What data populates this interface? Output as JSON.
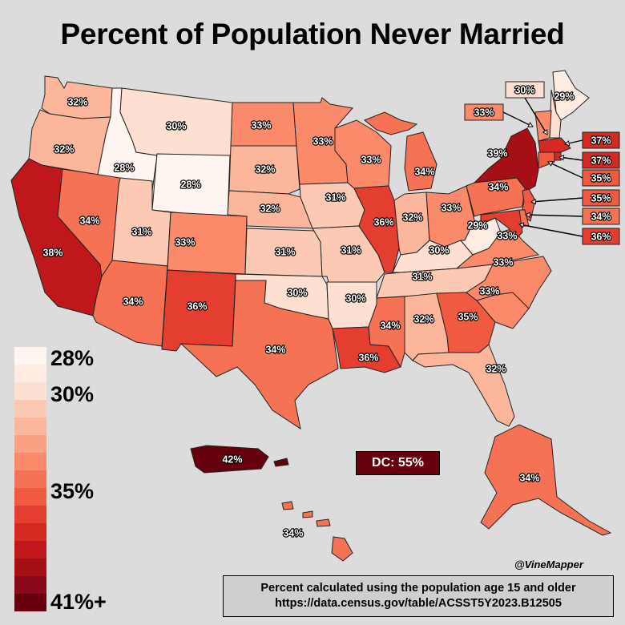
{
  "title": "Percent of Population Never Married",
  "colors": {
    "background": "#dcdcdc",
    "scale": [
      "#fff5f0",
      "#feebe2",
      "#fde0d2",
      "#fcc9b4",
      "#fcb69b",
      "#fca082",
      "#fb8a6a",
      "#f67255",
      "#ef5a40",
      "#e33e2f",
      "#d42a22",
      "#c0171c",
      "#a50f15",
      "#87091a",
      "#67000d"
    ]
  },
  "legend": {
    "labels": [
      {
        "text": "28%",
        "level": 0
      },
      {
        "text": "30%",
        "level": 2
      },
      {
        "text": "35%",
        "level": 7
      },
      {
        "text": "41%+",
        "level": 14
      }
    ]
  },
  "states": {
    "WA": {
      "label": "32%",
      "value": 32
    },
    "OR": {
      "label": "32%",
      "value": 32
    },
    "CA": {
      "label": "38%",
      "value": 38
    },
    "ID": {
      "label": "28%",
      "value": 28
    },
    "NV": {
      "label": "34%",
      "value": 34
    },
    "MT": {
      "label": "30%",
      "value": 30
    },
    "WY": {
      "label": "28%",
      "value": 28
    },
    "UT": {
      "label": "31%",
      "value": 31
    },
    "AZ": {
      "label": "34%",
      "value": 34
    },
    "CO": {
      "label": "33%",
      "value": 33
    },
    "NM": {
      "label": "36%",
      "value": 36
    },
    "ND": {
      "label": "33%",
      "value": 33
    },
    "SD": {
      "label": "32%",
      "value": 32
    },
    "NE": {
      "label": "32%",
      "value": 32
    },
    "KS": {
      "label": "31%",
      "value": 31
    },
    "OK": {
      "label": "30%",
      "value": 30
    },
    "TX": {
      "label": "34%",
      "value": 34
    },
    "MN": {
      "label": "33%",
      "value": 33
    },
    "IA": {
      "label": "31%",
      "value": 31
    },
    "MO": {
      "label": "31%",
      "value": 31
    },
    "AR": {
      "label": "30%",
      "value": 30
    },
    "LA": {
      "label": "36%",
      "value": 36
    },
    "WI": {
      "label": "33%",
      "value": 33
    },
    "IL": {
      "label": "36%",
      "value": 36
    },
    "MI": {
      "label": "34%",
      "value": 34
    },
    "IN": {
      "label": "32%",
      "value": 32
    },
    "OH": {
      "label": "33%",
      "value": 33
    },
    "KY": {
      "label": "30%",
      "value": 30
    },
    "TN": {
      "label": "31%",
      "value": 31
    },
    "MS": {
      "label": "34%",
      "value": 34
    },
    "AL": {
      "label": "32%",
      "value": 32
    },
    "GA": {
      "label": "35%",
      "value": 35
    },
    "FL": {
      "label": "32%",
      "value": 32
    },
    "SC": {
      "label": "33%",
      "value": 33
    },
    "NC": {
      "label": "33%",
      "value": 33
    },
    "VA": {
      "label": "33%",
      "value": 33
    },
    "WV": {
      "label": "29%",
      "value": 29
    },
    "PA": {
      "label": "34%",
      "value": 34
    },
    "NY": {
      "label": "39%",
      "value": 39
    },
    "ME": {
      "label": "29%",
      "value": 29
    },
    "NH": {
      "label": "30%",
      "value": 30
    },
    "VT": {
      "label": "33%",
      "value": 33
    },
    "MA": {
      "label": "37%",
      "value": 37
    },
    "RI": {
      "label": "37%",
      "value": 37
    },
    "CT": {
      "label": "35%",
      "value": 35
    },
    "NJ": {
      "label": "35%",
      "value": 35
    },
    "DE": {
      "label": "34%",
      "value": 34
    },
    "MD": {
      "label": "36%",
      "value": 36
    },
    "AK": {
      "label": "34%",
      "value": 34
    },
    "HI": {
      "label": "34%",
      "value": 34
    },
    "PR": {
      "label": "42%",
      "value": 42
    }
  },
  "dc": {
    "label": "DC: 55%",
    "value": 55
  },
  "credit": "@VineMapper",
  "source": {
    "line1": "Percent calculated using the population age 15 and older",
    "line2": "https://data.census.gov/table/ACSST5Y2023.B12505"
  }
}
